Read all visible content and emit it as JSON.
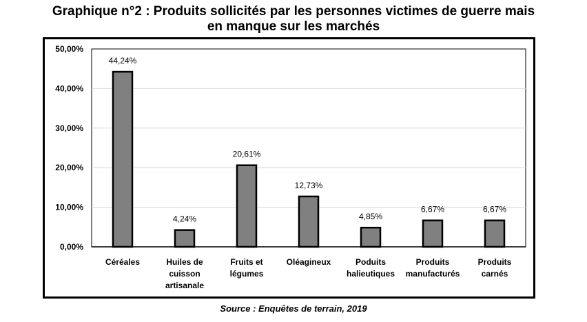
{
  "title_line1": "Graphique n°2 : Produits sollicités par les personnes victimes de guerre mais",
  "title_line2": "en manque sur les marchés",
  "source": "Source : Enquêtes de terrain, 2019",
  "chart_data": {
    "type": "bar",
    "title": "Graphique n°2 : Produits sollicités par les personnes victimes de guerre mais en manque sur les marchés",
    "categories": [
      [
        "Céréales"
      ],
      [
        "Huiles de",
        "cuisson",
        "artisanale"
      ],
      [
        "Fruits et",
        "légumes"
      ],
      [
        "Oléagineux"
      ],
      [
        "Poduits",
        "halieutiques"
      ],
      [
        "Produits",
        "manufacturés"
      ],
      [
        "Produits",
        "carnés"
      ]
    ],
    "values": [
      44.24,
      4.24,
      20.61,
      12.73,
      4.85,
      6.67,
      6.67
    ],
    "data_labels": [
      "44,24%",
      "4,24%",
      "20,61%",
      "12,73%",
      "4,85%",
      "6,67%",
      "6,67%"
    ],
    "y_ticks": [
      "0,00%",
      "10,00%",
      "20,00%",
      "30,00%",
      "40,00%",
      "50,00%"
    ],
    "ylim": [
      0,
      50
    ],
    "grid": true,
    "bar_color": "#808080",
    "bar_edge_color": "#000000"
  }
}
